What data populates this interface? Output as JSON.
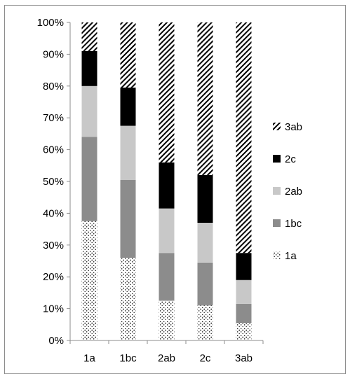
{
  "chart_data": {
    "type": "bar",
    "stacked": "percent",
    "categories": [
      "1a",
      "1bc",
      "2ab",
      "2c",
      "3ab"
    ],
    "ylim": [
      0,
      100
    ],
    "y_ticks": [
      "0%",
      "10%",
      "20%",
      "30%",
      "40%",
      "50%",
      "60%",
      "70%",
      "80%",
      "90%",
      "100%"
    ],
    "grid": false,
    "legend_position": "right",
    "title": "",
    "xlabel": "",
    "ylabel": "",
    "series": [
      {
        "name": "1a",
        "values": [
          37.5,
          26.0,
          12.5,
          11.0,
          5.5
        ],
        "pattern": "dots",
        "color": "#ffffff"
      },
      {
        "name": "1bc",
        "values": [
          26.5,
          24.5,
          15.0,
          13.5,
          6.0
        ],
        "pattern": "solid",
        "color": "#8c8c8c"
      },
      {
        "name": "2ab",
        "values": [
          16.0,
          17.0,
          14.0,
          12.5,
          7.5
        ],
        "pattern": "solid",
        "color": "#c8c8c8"
      },
      {
        "name": "2c",
        "values": [
          11.0,
          12.0,
          14.5,
          15.0,
          8.5
        ],
        "pattern": "solid",
        "color": "#000000"
      },
      {
        "name": "3ab",
        "values": [
          9.0,
          20.5,
          44.0,
          48.0,
          72.5
        ],
        "pattern": "hatch",
        "color": "#000000"
      }
    ],
    "legend": [
      "3ab",
      "2c",
      "2ab",
      "1bc",
      "1a"
    ]
  }
}
